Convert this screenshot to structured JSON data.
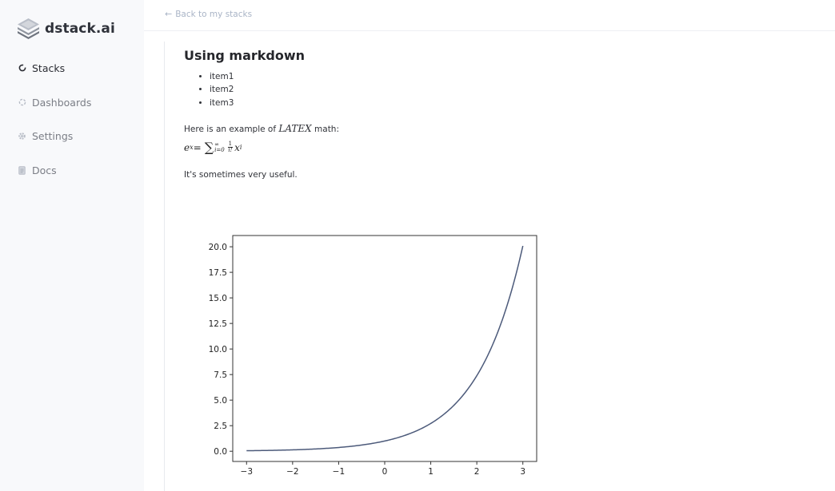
{
  "app": {
    "logo_text": "dstack.ai"
  },
  "sidebar": {
    "items": [
      {
        "label": "Stacks",
        "icon": "stacks-icon",
        "active": true
      },
      {
        "label": "Dashboards",
        "icon": "dashboards-icon",
        "active": false
      },
      {
        "label": "Settings",
        "icon": "gear-icon",
        "active": false
      },
      {
        "label": "Docs",
        "icon": "docs-icon",
        "active": false
      }
    ]
  },
  "header": {
    "back_label": "Back to my stacks"
  },
  "markdown": {
    "title": "Using markdown",
    "list": [
      "item1",
      "item2",
      "item3"
    ],
    "latex_intro_before": "Here is an example of ",
    "latex_word": "LATEX",
    "latex_intro_after": " math:",
    "formula_lhs": "e",
    "formula_lhs_exp": "x",
    "formula_eq": " = ",
    "formula_sum_upper": "∞",
    "formula_sum_lower": "i=0",
    "formula_frac_num": "1",
    "formula_frac_den": "i!",
    "formula_term": "x",
    "formula_term_exp": "i",
    "closing": "It's sometimes very useful."
  },
  "colors": {
    "sidebar_bg": "#f8f9fb",
    "line": "#4c5a7a",
    "accent_text": "#a9b4c6"
  },
  "chart_data": {
    "type": "line",
    "title": "",
    "xlabel": "",
    "ylabel": "",
    "function": "exp(x)",
    "x": [
      -3,
      -2.5,
      -2,
      -1.5,
      -1,
      -0.5,
      0,
      0.5,
      1,
      1.5,
      2,
      2.25,
      2.5,
      2.75,
      3
    ],
    "y": [
      0.05,
      0.08,
      0.14,
      0.22,
      0.37,
      0.61,
      1.0,
      1.65,
      2.72,
      4.48,
      7.39,
      9.49,
      12.18,
      15.64,
      20.09
    ],
    "xlim": [
      -3.3,
      3.3
    ],
    "ylim": [
      -1.0,
      21.1
    ],
    "xticks": [
      -3,
      -2,
      -1,
      0,
      1,
      2,
      3
    ],
    "xtick_labels": [
      "−3",
      "−2",
      "−1",
      "0",
      "1",
      "2",
      "3"
    ],
    "yticks": [
      0.0,
      2.5,
      5.0,
      7.5,
      10.0,
      12.5,
      15.0,
      17.5,
      20.0
    ],
    "ytick_labels": [
      "0.0",
      "2.5",
      "5.0",
      "7.5",
      "10.0",
      "12.5",
      "15.0",
      "17.5",
      "20.0"
    ],
    "grid": false,
    "legend": "none"
  }
}
